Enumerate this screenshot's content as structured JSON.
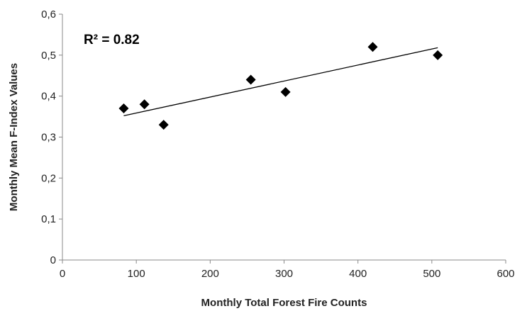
{
  "chart_data": {
    "type": "scatter",
    "title": "",
    "xlabel": "Monthly Total Forest Fire Counts",
    "ylabel": "Monthly Mean F-Index Values",
    "xlim": [
      0,
      600
    ],
    "ylim": [
      0,
      0.6
    ],
    "x_ticks": [
      "0",
      "100",
      "200",
      "300",
      "400",
      "500",
      "600"
    ],
    "y_ticks": [
      "0",
      "0,1",
      "0,2",
      "0,3",
      "0,4",
      "0,5",
      "0,6"
    ],
    "grid": false,
    "legend": "none",
    "marker": "diamond",
    "colors": {
      "marker": "#000000",
      "trendline": "#000000",
      "axis": "#888888"
    },
    "points": [
      {
        "x": 83,
        "y": 0.37
      },
      {
        "x": 111,
        "y": 0.38
      },
      {
        "x": 137,
        "y": 0.33
      },
      {
        "x": 255,
        "y": 0.44
      },
      {
        "x": 302,
        "y": 0.41
      },
      {
        "x": 420,
        "y": 0.52
      },
      {
        "x": 508,
        "y": 0.5
      }
    ],
    "trendline": {
      "type": "linear",
      "from": {
        "x": 83,
        "y": 0.352
      },
      "to": {
        "x": 508,
        "y": 0.518
      }
    },
    "annotation": "R² = 0.82"
  }
}
